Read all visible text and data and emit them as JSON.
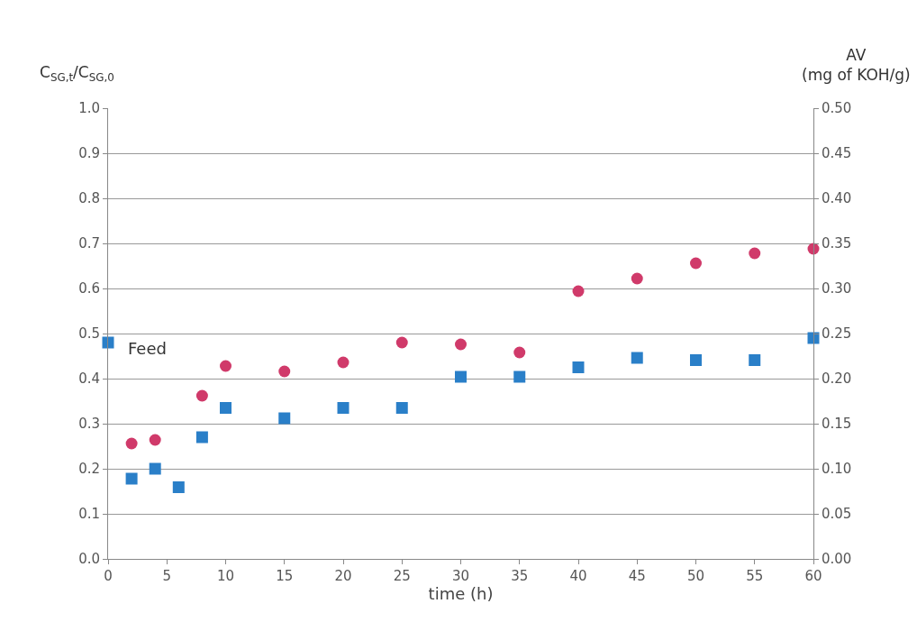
{
  "chart_data": {
    "type": "scatter",
    "ylabel": "C$_{SG,t}$/C$_{SG,0}$",
    "y2label": "AV\n(mg of KOH/g)",
    "xlabel": "time (h)",
    "series": [
      {
        "color": "#2a7fc8",
        "marker": "square",
        "x": [
          0,
          2,
          4,
          6,
          8,
          10,
          15,
          20,
          25,
          30,
          35,
          40,
          45,
          50,
          55,
          60
        ],
        "values": [
          0.48,
          0.178,
          0.2,
          0.159,
          0.27,
          0.335,
          0.312,
          0.335,
          0.335,
          0.404,
          0.404,
          0.425,
          0.446,
          0.441,
          0.441,
          0.49
        ]
      },
      {
        "color": "#d03a6a",
        "marker": "circle",
        "axis": "y2",
        "x": [
          2,
          4,
          8,
          10,
          15,
          20,
          25,
          30,
          35,
          40,
          45,
          50,
          55,
          60
        ],
        "values": [
          0.128,
          0.132,
          0.181,
          0.214,
          0.208,
          0.218,
          0.24,
          0.238,
          0.229,
          0.297,
          0.311,
          0.328,
          0.339,
          0.344
        ]
      }
    ],
    "annotations": [
      {
        "text": "Feed",
        "x": 0,
        "y": 0.48
      }
    ],
    "xlim": [
      0,
      60
    ],
    "xticks": [
      0,
      5,
      10,
      15,
      20,
      25,
      30,
      35,
      40,
      45,
      50,
      55,
      60
    ],
    "ylim": [
      0,
      1
    ],
    "yticks": [
      {
        "value": 0,
        "label": "0.0"
      },
      {
        "value": 0.1,
        "label": "0.1"
      },
      {
        "value": 0.2,
        "label": "0.2"
      },
      {
        "value": 0.3,
        "label": "0.3"
      },
      {
        "value": 0.4,
        "label": "0.4"
      },
      {
        "value": 0.5,
        "label": "0.5"
      },
      {
        "value": 0.6,
        "label": "0.6"
      },
      {
        "value": 0.7,
        "label": "0.7"
      },
      {
        "value": 0.8,
        "label": "0.8"
      },
      {
        "value": 0.9,
        "label": "0.9"
      },
      {
        "value": 1,
        "label": "1.0"
      }
    ],
    "y2lim": [
      0,
      0.5
    ],
    "y2ticks": [
      {
        "value": 0,
        "label": "0.00"
      },
      {
        "value": 0.05,
        "label": "0.05"
      },
      {
        "value": 0.1,
        "label": "0.10"
      },
      {
        "value": 0.15,
        "label": "0.15"
      },
      {
        "value": 0.2,
        "label": "0.20"
      },
      {
        "value": 0.25,
        "label": "0.25"
      },
      {
        "value": 0.3,
        "label": "0.30"
      },
      {
        "value": 0.35,
        "label": "0.35"
      },
      {
        "value": 0.4,
        "label": "0.40"
      },
      {
        "value": 0.45,
        "label": "0.45"
      },
      {
        "value": 0.5,
        "label": "0.50"
      }
    ],
    "grid": "y",
    "legend": false
  }
}
